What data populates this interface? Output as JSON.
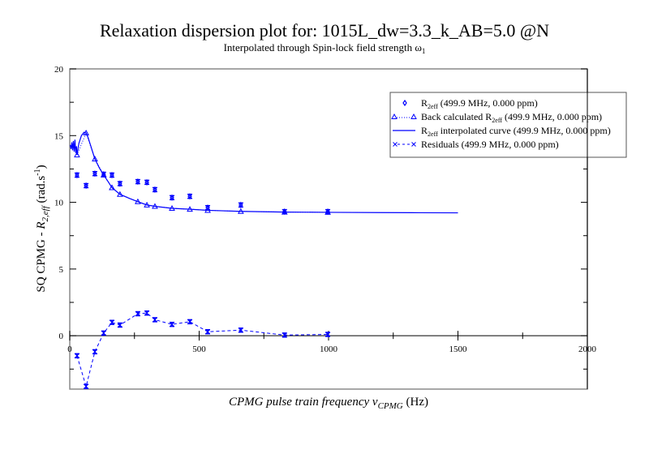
{
  "chart_data": {
    "type": "scatter",
    "title": "Relaxation dispersion plot for: 1015L_dw=3.3_k_AB=5.0 @N",
    "subtitle": "Interpolated through Spin-lock field strength ω",
    "subtitle_sub": "1",
    "xlabel": {
      "main": "CPMG pulse train frequency ν",
      "sub": "CPMG",
      "unit": " (Hz)"
    },
    "ylabel": {
      "prefix": "SQ CPMG - ",
      "main": "R",
      "sub": "2,eff",
      "unit_prefix": " (rad.s",
      "unit_sup": "-1",
      "unit_suffix": ")"
    },
    "xlim": [
      0,
      2000
    ],
    "ylim": [
      -4,
      20
    ],
    "xticks": [
      0,
      500,
      1000,
      1500,
      2000
    ],
    "xtick_labels": [
      "0",
      "500",
      "1000",
      "1500",
      "2000"
    ],
    "yticks": [
      0,
      5,
      10,
      15,
      20
    ],
    "ytick_labels": [
      "0",
      "5",
      "10",
      "15",
      "20"
    ],
    "grid": false,
    "legend_position": "top-right",
    "series": [
      {
        "name": "R2eff (499.9 MHz, 0.000 ppm)",
        "legend": {
          "pre": "R",
          "sub": "2eff",
          "post": " (499.9 MHz, 0.000 ppm)"
        },
        "kind": "points-errorbars",
        "color": "#0000ff",
        "x": [
          28,
          63,
          97,
          131,
          163,
          194,
          263,
          298,
          329,
          395,
          464,
          533,
          661,
          830,
          997
        ],
        "y": [
          12.04,
          11.25,
          12.15,
          12.1,
          12.04,
          11.4,
          11.55,
          11.5,
          10.95,
          10.35,
          10.45,
          9.6,
          9.8,
          9.3,
          9.3
        ],
        "yerr": [
          0.15,
          0.15,
          0.15,
          0.15,
          0.15,
          0.15,
          0.15,
          0.15,
          0.15,
          0.15,
          0.15,
          0.15,
          0.15,
          0.15,
          0.15
        ]
      },
      {
        "name": "Back calculated R2eff (499.9 MHz, 0.000 ppm)",
        "legend": {
          "pre": "Back calculated R",
          "sub": "2eff",
          "post": " (499.9 MHz, 0.000 ppm)"
        },
        "kind": "triangles-dotted",
        "color": "#0000ff",
        "x": [
          28,
          63,
          97,
          131,
          163,
          194,
          263,
          298,
          329,
          395,
          464,
          533,
          661,
          830,
          997
        ],
        "y": [
          13.55,
          15.2,
          13.25,
          12.05,
          11.1,
          10.6,
          10.05,
          9.8,
          9.7,
          9.55,
          9.48,
          9.4,
          9.32,
          9.27,
          9.25
        ]
      },
      {
        "name": "R2eff interpolated curve (499.9 MHz, 0.000 ppm)",
        "legend": {
          "pre": "R",
          "sub": "2eff",
          "post": " interpolated curve (499.9 MHz, 0.000 ppm)"
        },
        "kind": "line",
        "color": "#0000ff",
        "x": [
          2,
          5,
          8,
          11,
          14,
          17,
          20,
          23,
          26,
          28,
          35,
          45,
          55,
          63,
          70,
          80,
          97,
          115,
          131,
          150,
          163,
          194,
          230,
          263,
          298,
          329,
          395,
          464,
          533,
          661,
          830,
          997,
          1200,
          1350,
          1500
        ],
        "y": [
          14.3,
          14.0,
          14.5,
          13.9,
          14.6,
          13.8,
          14.7,
          13.7,
          14.2,
          13.55,
          14.4,
          15.0,
          15.25,
          15.2,
          14.9,
          14.3,
          13.25,
          12.55,
          12.05,
          11.5,
          11.1,
          10.6,
          10.3,
          10.05,
          9.8,
          9.7,
          9.55,
          9.48,
          9.4,
          9.32,
          9.27,
          9.25,
          9.23,
          9.22,
          9.21
        ]
      },
      {
        "name": "Residuals (499.9 MHz, 0.000 ppm)",
        "legend": {
          "pre": "Residuals (499.9 MHz, 0.000 ppm)",
          "sub": "",
          "post": ""
        },
        "kind": "x-dashed-errorbars",
        "color": "#0000ff",
        "x": [
          28,
          63,
          97,
          131,
          163,
          194,
          263,
          298,
          329,
          395,
          464,
          533,
          661,
          830,
          997
        ],
        "y": [
          -1.5,
          -3.8,
          -1.2,
          0.2,
          1.0,
          0.8,
          1.65,
          1.7,
          1.2,
          0.85,
          1.05,
          0.3,
          0.42,
          0.05,
          0.1
        ],
        "yerr": [
          0.15,
          0.15,
          0.15,
          0.15,
          0.15,
          0.15,
          0.15,
          0.15,
          0.15,
          0.15,
          0.15,
          0.15,
          0.15,
          0.15,
          0.15
        ]
      }
    ]
  }
}
